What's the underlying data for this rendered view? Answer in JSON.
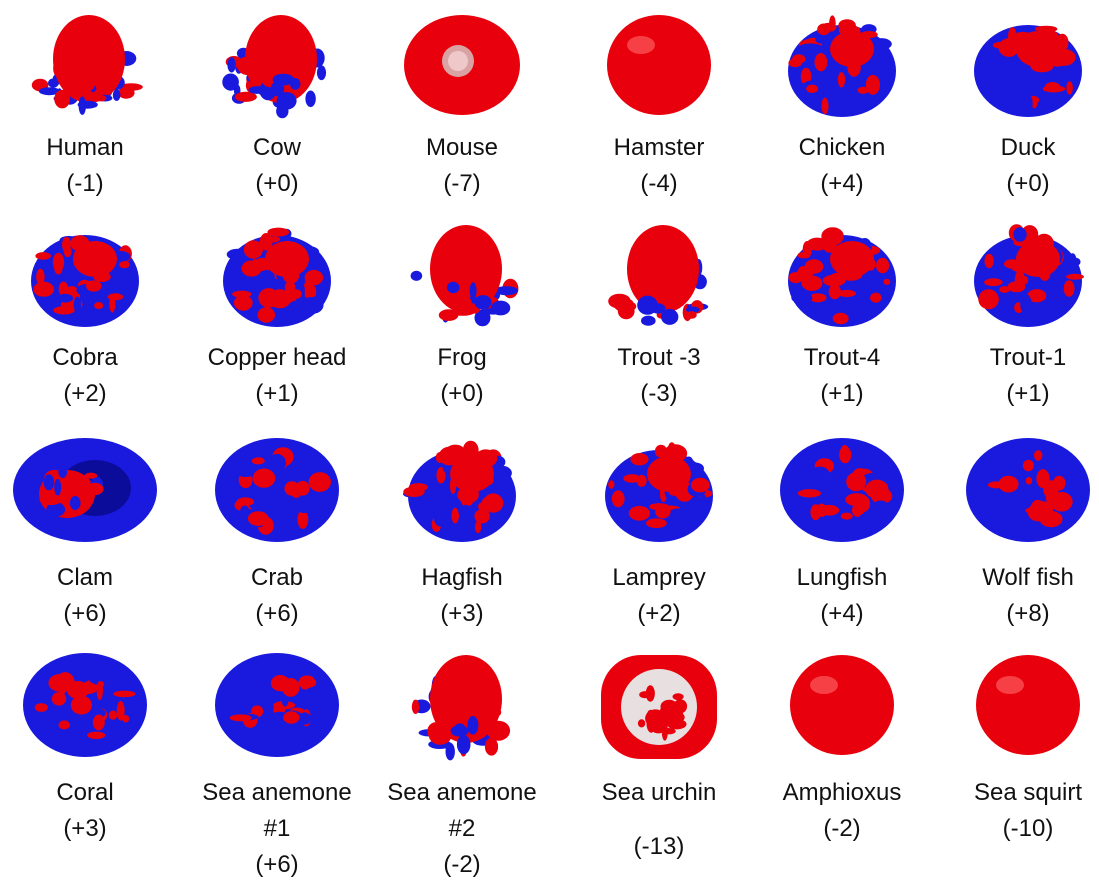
{
  "colors": {
    "positive": "#e8000d",
    "negative": "#1a1adf"
  },
  "rows": [
    [
      {
        "name": "Human",
        "charge": "(-1)",
        "shape": "red-dominant-mixed"
      },
      {
        "name": "Cow",
        "charge": "(+0)",
        "shape": "red-dominant-mixed"
      },
      {
        "name": "Mouse",
        "charge": "(-7)",
        "shape": "red-sphere-with-pore"
      },
      {
        "name": "Hamster",
        "charge": "(-4)",
        "shape": "red-sphere"
      },
      {
        "name": "Chicken",
        "charge": "(+4)",
        "shape": "mixed"
      },
      {
        "name": "Duck",
        "charge": "(+0)",
        "shape": "mixed"
      }
    ],
    [
      {
        "name": "Cobra",
        "charge": "(+2)",
        "shape": "mixed"
      },
      {
        "name": "Copper head",
        "charge": "(+1)",
        "shape": "mixed"
      },
      {
        "name": "Frog",
        "charge": "(+0)",
        "shape": "red-dominant-mixed"
      },
      {
        "name": "Trout -3",
        "charge": "(-3)",
        "shape": "red-dominant-mixed"
      },
      {
        "name": "Trout-4",
        "charge": "(+1)",
        "shape": "mixed"
      },
      {
        "name": "Trout-1",
        "charge": "(+1)",
        "shape": "mixed"
      }
    ],
    [
      {
        "name": "Clam",
        "charge": "(+6)",
        "shape": "blue-ring"
      },
      {
        "name": "Crab",
        "charge": "(+6)",
        "shape": "blue-dominant"
      },
      {
        "name": "Hagfish",
        "charge": "(+3)",
        "shape": "mixed"
      },
      {
        "name": "Lamprey",
        "charge": "(+2)",
        "shape": "mixed"
      },
      {
        "name": "Lungfish",
        "charge": "(+4)",
        "shape": "blue-dominant"
      },
      {
        "name": "Wolf fish",
        "charge": "(+8)",
        "shape": "blue-dominant"
      }
    ],
    [
      {
        "name": "Coral",
        "charge": "(+3)",
        "shape": "blue-dominant"
      },
      {
        "name": "Sea anemone",
        "name2": "#1",
        "charge": "(+6)",
        "shape": "blue-dominant"
      },
      {
        "name": "Sea anemone",
        "name2": "#2",
        "charge": "(-2)",
        "shape": "red-dominant-mixed"
      },
      {
        "name": "Sea urchin",
        "charge": "(-13)",
        "shape": "red-ring"
      },
      {
        "name": "Amphioxus",
        "charge": "(-2)",
        "shape": "red-sphere"
      },
      {
        "name": "Sea squirt",
        "charge": "(-10)",
        "shape": "red-sphere"
      }
    ]
  ]
}
